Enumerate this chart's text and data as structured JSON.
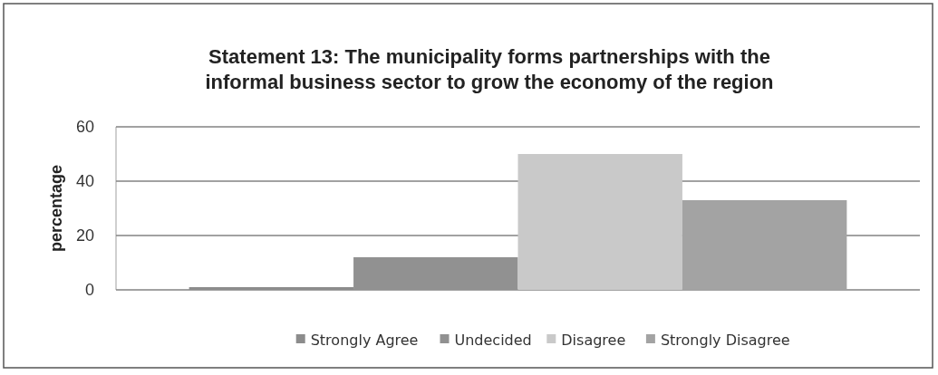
{
  "chart_data": {
    "type": "bar",
    "title": "Statement 13: The municipality forms partnerships with the informal business sector to grow the economy of the region",
    "ylabel": "percentage",
    "categories": [
      null
    ],
    "series": [
      {
        "name": "Strongly Agree",
        "color": "#8c8c8c",
        "values": [
          1
        ]
      },
      {
        "name": "Undecided",
        "color": "#919191",
        "values": [
          12
        ]
      },
      {
        "name": "Disagree",
        "color": "#c9c9c9",
        "values": [
          50
        ]
      },
      {
        "name": "Strongly Disagree",
        "color": "#a3a3a3",
        "values": [
          33
        ]
      }
    ],
    "ylim": [
      0,
      60
    ],
    "yticks": [
      0,
      20,
      40,
      60
    ],
    "grid": "y",
    "legend": "bottom"
  }
}
